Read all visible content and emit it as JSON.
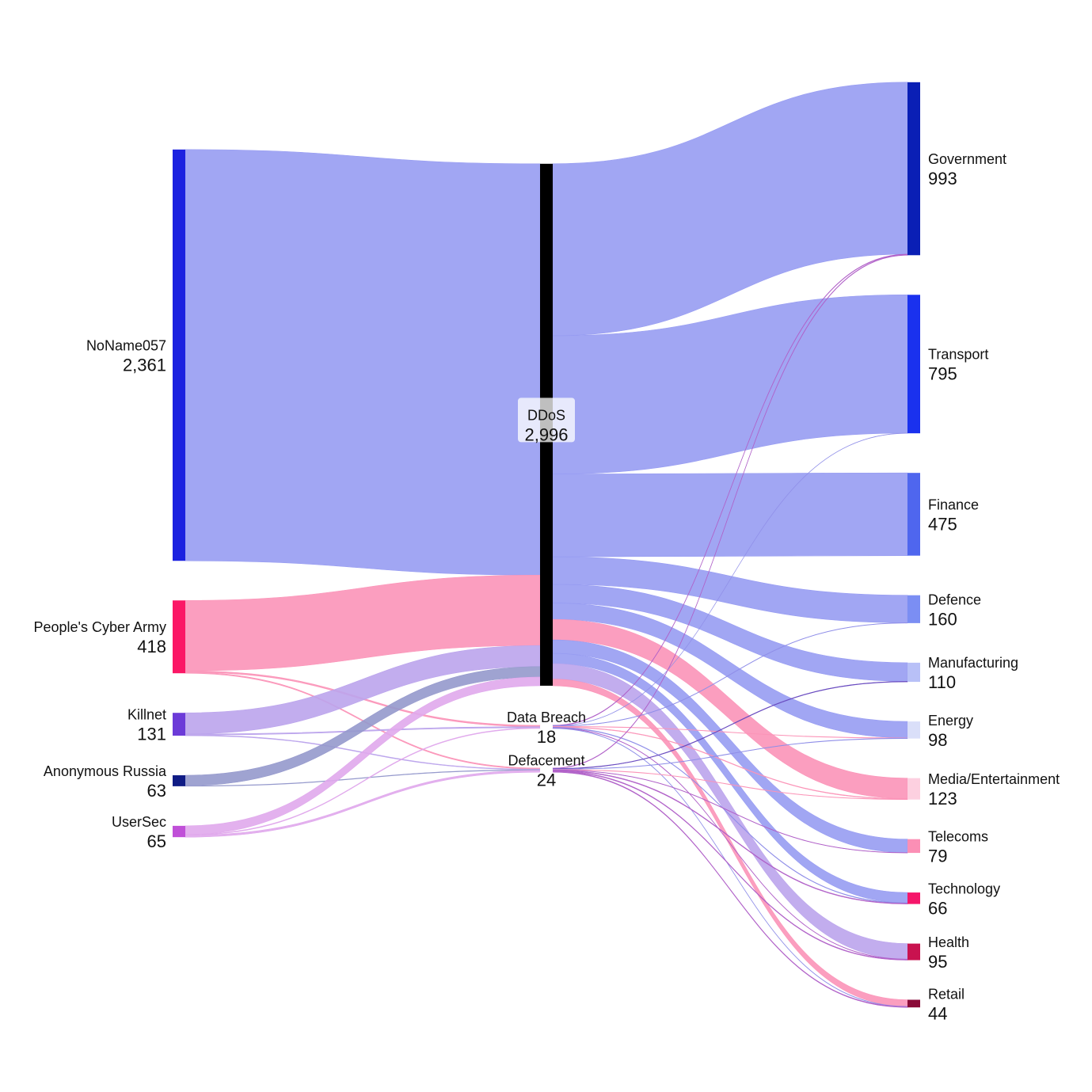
{
  "chart_data": {
    "type": "sankey",
    "nodes": [
      {
        "label": "NoName057",
        "value": 2361,
        "value_label": "2,361",
        "column": 0,
        "color": "#1c22e0"
      },
      {
        "label": "People's Cyber Army",
        "value": 418,
        "value_label": "418",
        "column": 0,
        "color": "#fb1766"
      },
      {
        "label": "Killnet",
        "value": 131,
        "value_label": "131",
        "column": 0,
        "color": "#6c3bd8"
      },
      {
        "label": "Anonymous Russia",
        "value": 63,
        "value_label": "63",
        "column": 0,
        "color": "#101c85"
      },
      {
        "label": "UserSec",
        "value": 65,
        "value_label": "65",
        "column": 0,
        "color": "#c050d8"
      },
      {
        "label": "DDoS",
        "value": 2996,
        "value_label": "2,996",
        "column": 1,
        "color": "#000000"
      },
      {
        "label": "Data Breach",
        "value": 18,
        "value_label": "18",
        "column": 1,
        "color": "#ffffff"
      },
      {
        "label": "Defacement",
        "value": 24,
        "value_label": "24",
        "column": 1,
        "color": "#ffffff"
      },
      {
        "label": "Government",
        "value": 993,
        "value_label": "993",
        "column": 2,
        "color": "#0a1fb5"
      },
      {
        "label": "Transport",
        "value": 795,
        "value_label": "795",
        "column": 2,
        "color": "#1a31ee"
      },
      {
        "label": "Finance",
        "value": 475,
        "value_label": "475",
        "column": 2,
        "color": "#4f66ee"
      },
      {
        "label": "Defence",
        "value": 160,
        "value_label": "160",
        "column": 2,
        "color": "#7b8ef3"
      },
      {
        "label": "Manufacturing",
        "value": 110,
        "value_label": "110",
        "column": 2,
        "color": "#b8c0f7"
      },
      {
        "label": "Energy",
        "value": 98,
        "value_label": "98",
        "column": 2,
        "color": "#dadff9"
      },
      {
        "label": "Media/Entertainment",
        "value": 123,
        "value_label": "123",
        "column": 2,
        "color": "#fdd0e0"
      },
      {
        "label": "Telecoms",
        "value": 79,
        "value_label": "79",
        "column": 2,
        "color": "#fb8fb5"
      },
      {
        "label": "Technology",
        "value": 66,
        "value_label": "66",
        "column": 2,
        "color": "#f5166a"
      },
      {
        "label": "Health",
        "value": 95,
        "value_label": "95",
        "column": 2,
        "color": "#c9124f"
      },
      {
        "label": "Retail",
        "value": 44,
        "value_label": "44",
        "column": 2,
        "color": "#8a0a38"
      }
    ],
    "links": [
      {
        "source": 0,
        "target": 5,
        "value": 2361,
        "color": "#979cf2"
      },
      {
        "source": 1,
        "target": 5,
        "value": 404,
        "color": "#fb94b8"
      },
      {
        "source": 1,
        "target": 6,
        "value": 8,
        "color": "#fb94b8"
      },
      {
        "source": 1,
        "target": 7,
        "value": 6,
        "color": "#fb94b8"
      },
      {
        "source": 2,
        "target": 5,
        "value": 121,
        "color": "#bba4ec"
      },
      {
        "source": 2,
        "target": 6,
        "value": 6,
        "color": "#bba4ec"
      },
      {
        "source": 2,
        "target": 7,
        "value": 4,
        "color": "#bba4ec"
      },
      {
        "source": 3,
        "target": 5,
        "value": 60,
        "color": "#9599cc"
      },
      {
        "source": 3,
        "target": 7,
        "value": 3,
        "color": "#9599cc"
      },
      {
        "source": 4,
        "target": 5,
        "value": 50,
        "color": "#e0a8ec"
      },
      {
        "source": 4,
        "target": 6,
        "value": 4,
        "color": "#e0a8ec"
      },
      {
        "source": 4,
        "target": 7,
        "value": 11,
        "color": "#e0a8ec"
      },
      {
        "source": 5,
        "target": 8,
        "value": 987,
        "color": "#979cf2"
      },
      {
        "source": 5,
        "target": 9,
        "value": 794,
        "color": "#979cf2"
      },
      {
        "source": 5,
        "target": 10,
        "value": 475,
        "color": "#979cf2"
      },
      {
        "source": 5,
        "target": 11,
        "value": 158,
        "color": "#979cf2"
      },
      {
        "source": 5,
        "target": 12,
        "value": 107,
        "color": "#979cf2"
      },
      {
        "source": 5,
        "target": 13,
        "value": 94,
        "color": "#979cf2"
      },
      {
        "source": 5,
        "target": 14,
        "value": 118,
        "color": "#fb94b8"
      },
      {
        "source": 5,
        "target": 15,
        "value": 77,
        "color": "#979cf2"
      },
      {
        "source": 5,
        "target": 16,
        "value": 59,
        "color": "#979cf2"
      },
      {
        "source": 5,
        "target": 17,
        "value": 89,
        "color": "#bba4ec"
      },
      {
        "source": 5,
        "target": 18,
        "value": 38,
        "color": "#fb94b8"
      },
      {
        "source": 6,
        "target": 8,
        "value": 3,
        "color": "#b060c8"
      },
      {
        "source": 6,
        "target": 9,
        "value": 1,
        "color": "#8f8ee8"
      },
      {
        "source": 6,
        "target": 11,
        "value": 2,
        "color": "#8f8ee8"
      },
      {
        "source": 6,
        "target": 13,
        "value": 2,
        "color": "#fb94b8"
      },
      {
        "source": 6,
        "target": 14,
        "value": 3,
        "color": "#fb94b8"
      },
      {
        "source": 6,
        "target": 16,
        "value": 3,
        "color": "#8f8ee8"
      },
      {
        "source": 6,
        "target": 17,
        "value": 2,
        "color": "#b060c8"
      },
      {
        "source": 6,
        "target": 18,
        "value": 2,
        "color": "#8f8ee8"
      },
      {
        "source": 7,
        "target": 8,
        "value": 3,
        "color": "#b060c8"
      },
      {
        "source": 7,
        "target": 12,
        "value": 3,
        "color": "#6a4cc0"
      },
      {
        "source": 7,
        "target": 13,
        "value": 2,
        "color": "#8f8ee8"
      },
      {
        "source": 7,
        "target": 14,
        "value": 2,
        "color": "#fb94b8"
      },
      {
        "source": 7,
        "target": 15,
        "value": 2,
        "color": "#b060c8"
      },
      {
        "source": 7,
        "target": 16,
        "value": 4,
        "color": "#b060c8"
      },
      {
        "source": 7,
        "target": 17,
        "value": 4,
        "color": "#b060c8"
      },
      {
        "source": 7,
        "target": 18,
        "value": 4,
        "color": "#b060c8"
      }
    ]
  }
}
